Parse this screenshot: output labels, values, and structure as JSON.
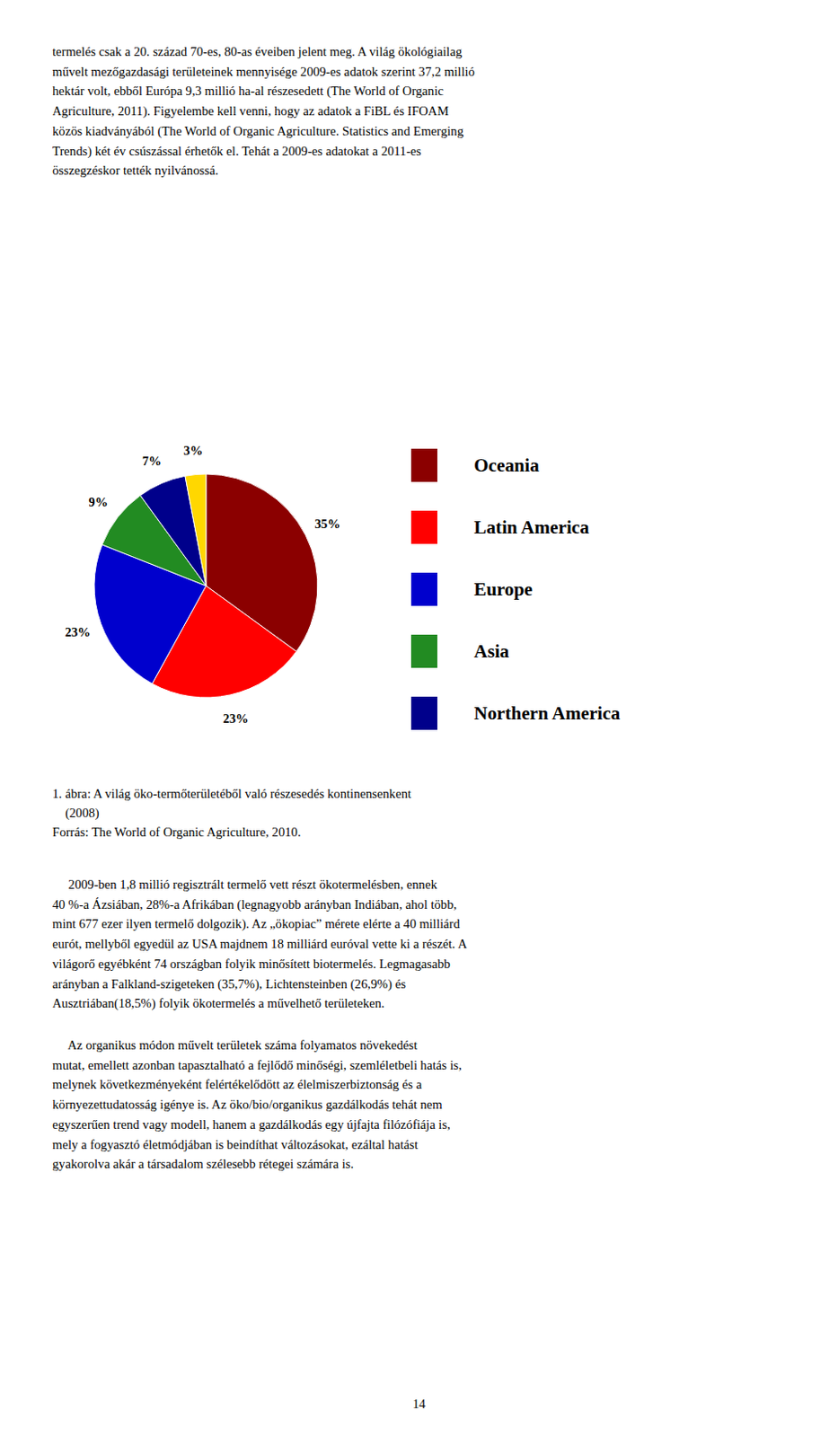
{
  "chart_data": {
    "type": "pie",
    "categories": [
      "Oceania",
      "Latin America",
      "Europe",
      "Asia",
      "Northern America",
      null
    ],
    "values": [
      35,
      23,
      23,
      9,
      7,
      3
    ],
    "value_labels": [
      "35%",
      "23%",
      "23%",
      "9%",
      "7%",
      "3%"
    ],
    "colors": [
      "#8b0000",
      "#ff0000",
      "#0000cd",
      "#228b22",
      "#00008b",
      "#ffd700"
    ],
    "data_labels": true
  },
  "top_paragraph": "termelés csak a 20. század 70-es, 80-as éveiben jelent meg. A világ ökológiailag\nművelt mezőgazdasági területei­nek mennyisége 2009-es adatok szerint 37,2 millió\nhektár volt, ebből Európa 9,3 millió ha-al részesedett (The World of Organic\nAgriculture, 2011). Figyelembe kell venni, hogy az adatok a FiBL és IFOAM\nközös kiadványából (The World of Organic Agriculture. Statistics and Emerging\nTrends) két év csúszással érhetők el. Tehát a 2009-es adatokat a 2011-es\nösszegzéskor tették nyilvánossá.",
  "caption": "1. ábra: A világ öko-termőterületéből való részesedés kontinensenkent\n    (2008)\nForrás: The World of Organic Agriculture, 2010.",
  "body1": "     2009-ben 1,8 millió regisztrált termelő vett részt ökotermelésben, ennek\n40 %-a Ázsiában, 28%-a Afrikában (legnagyobb arányban Indiában, ahol több,\nmint 677 ezer ilyen termelő dolgozik). Az „ökopiac” mérete elérte a 40 milliárd\neurót, mellyből egyedül az USA majdnem 18 milliárd euróval vette ki a részét. A\nvilágorő egyébként 74 országban folyik minősített biotermelés. Legmagasabb\narányban a Falkland-szigeteken (35,7%), Lichtensteinben (26,9%) és\nAusztriában(18,5%) folyik ökotermelés a művelhető területeken.",
  "body2": "     Az organikus módon művelt területek száma folyamatos növekedést\nmutat, emellett azonban tapasztalható a fejlődő minőségi, szemléletbeli hatás is,\nmelynek következményeként felértékelődött az élelmiszerbiztonság és a\nkörnyezettudatosság igénye is. Az öko/bio/organikus gazdálkodás tehát nem\negyszerűen trend vagy modell, hanem a gazdálkodás egy újfajta filózófiája is,\nmely a fogyasztó életmódjában is beindíthat változásokat, ezáltal hatást\ngyakorolva akár a társadalom szélesebb rétegei számára is.",
  "page_number": "14"
}
